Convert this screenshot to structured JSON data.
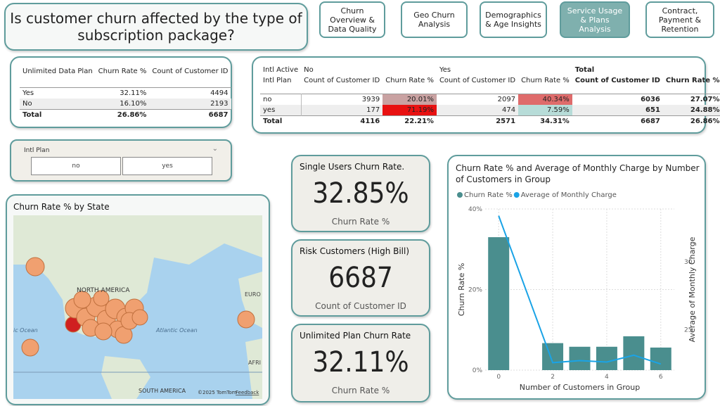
{
  "header": {
    "title": "Is customer churn affected by the type of subscription package?"
  },
  "nav": {
    "items": [
      "Churn Overview & Data Quality",
      "Geo Churn Analysis",
      "Demographics & Age Insights",
      "Service Usage & Plans Analysis",
      "Contract, Payment & Retention"
    ],
    "active": 3
  },
  "table1": {
    "headers": [
      "Unlimited Data Plan",
      "Churn Rate %",
      "Count of Customer ID"
    ],
    "rows": [
      [
        "Yes",
        "32.11%",
        4494
      ],
      [
        "No",
        "16.10%",
        2193
      ]
    ],
    "total": [
      "Total",
      "26.86%",
      6687
    ]
  },
  "table2": {
    "corner": [
      "Intl Active",
      "Intl Plan"
    ],
    "groups": [
      "No",
      "Yes",
      "Total"
    ],
    "columns": [
      "Count of Customer ID",
      "Churn Rate %"
    ],
    "rows": [
      {
        "label": "no",
        "cells": [
          3939,
          "20.01%",
          2097,
          "40.34%",
          6036,
          "27.07%"
        ],
        "colors": [
          null,
          "#c9a2a2",
          null,
          "#df6b6b",
          null,
          null
        ]
      },
      {
        "label": "yes",
        "cells": [
          177,
          "71.19%",
          474,
          "7.59%",
          651,
          "24.88%"
        ],
        "colors": [
          null,
          "#e81111",
          null,
          "#b7dcd8",
          null,
          null
        ]
      }
    ],
    "total": {
      "label": "Total",
      "cells": [
        4116,
        "22.21%",
        2571,
        "34.31%",
        6687,
        "26.86%"
      ]
    }
  },
  "slicer": {
    "title": "Intl Plan",
    "options": [
      "no",
      "yes"
    ]
  },
  "map": {
    "title": "Churn Rate % by State",
    "labels": [
      "NORTH AMERICA",
      "Atlantic Ocean",
      "EURO",
      "AFRI",
      "ic Ocean",
      "SOUTH AMERICA"
    ],
    "copyright": "©2025 TomTom",
    "feedback": "Feedback"
  },
  "cards": [
    {
      "title": "Single Users Churn Rate.",
      "value": "32.85%",
      "label": "Churn Rate %"
    },
    {
      "title": "Risk Customers (High Bill)",
      "value": 6687,
      "label": "Count of Customer ID"
    },
    {
      "title": "Unlimited Plan Churn Rate",
      "value": "32.11%",
      "label": "Churn Rate %"
    }
  ],
  "chart_data": {
    "type": "combo",
    "title": "Churn Rate % and Average of Monthly Charge by Number of Customers in Group",
    "x": [
      0,
      2,
      3,
      4,
      5,
      6
    ],
    "xlim": [
      -0.5,
      6.5
    ],
    "xticks": [
      0,
      2,
      4,
      6
    ],
    "xlabel": "Number of Customers in Group",
    "ylabel": "Churn Rate %",
    "y2label": "Average of Monthly Charge",
    "ylim": [
      0,
      40
    ],
    "yticks": [
      {
        "value": 0,
        "label": "0%"
      },
      {
        "value": 20,
        "label": "20%"
      },
      {
        "value": 40,
        "label": "40%"
      }
    ],
    "y2lim": [
      22,
      33.9
    ],
    "y2ticks": [
      25,
      30
    ],
    "grid": true,
    "series": [
      {
        "name": "Churn Rate %",
        "type": "bar",
        "color": "#4a8e8e",
        "values": [
          33,
          6.7,
          5.8,
          5.8,
          8.4,
          5.6
        ]
      },
      {
        "name": "Average of Monthly Charge",
        "type": "line",
        "axis": "y2",
        "color": "#1aa3e6",
        "values": [
          33.4,
          22.55,
          22.7,
          22.6,
          23.1,
          22.45
        ]
      }
    ]
  }
}
